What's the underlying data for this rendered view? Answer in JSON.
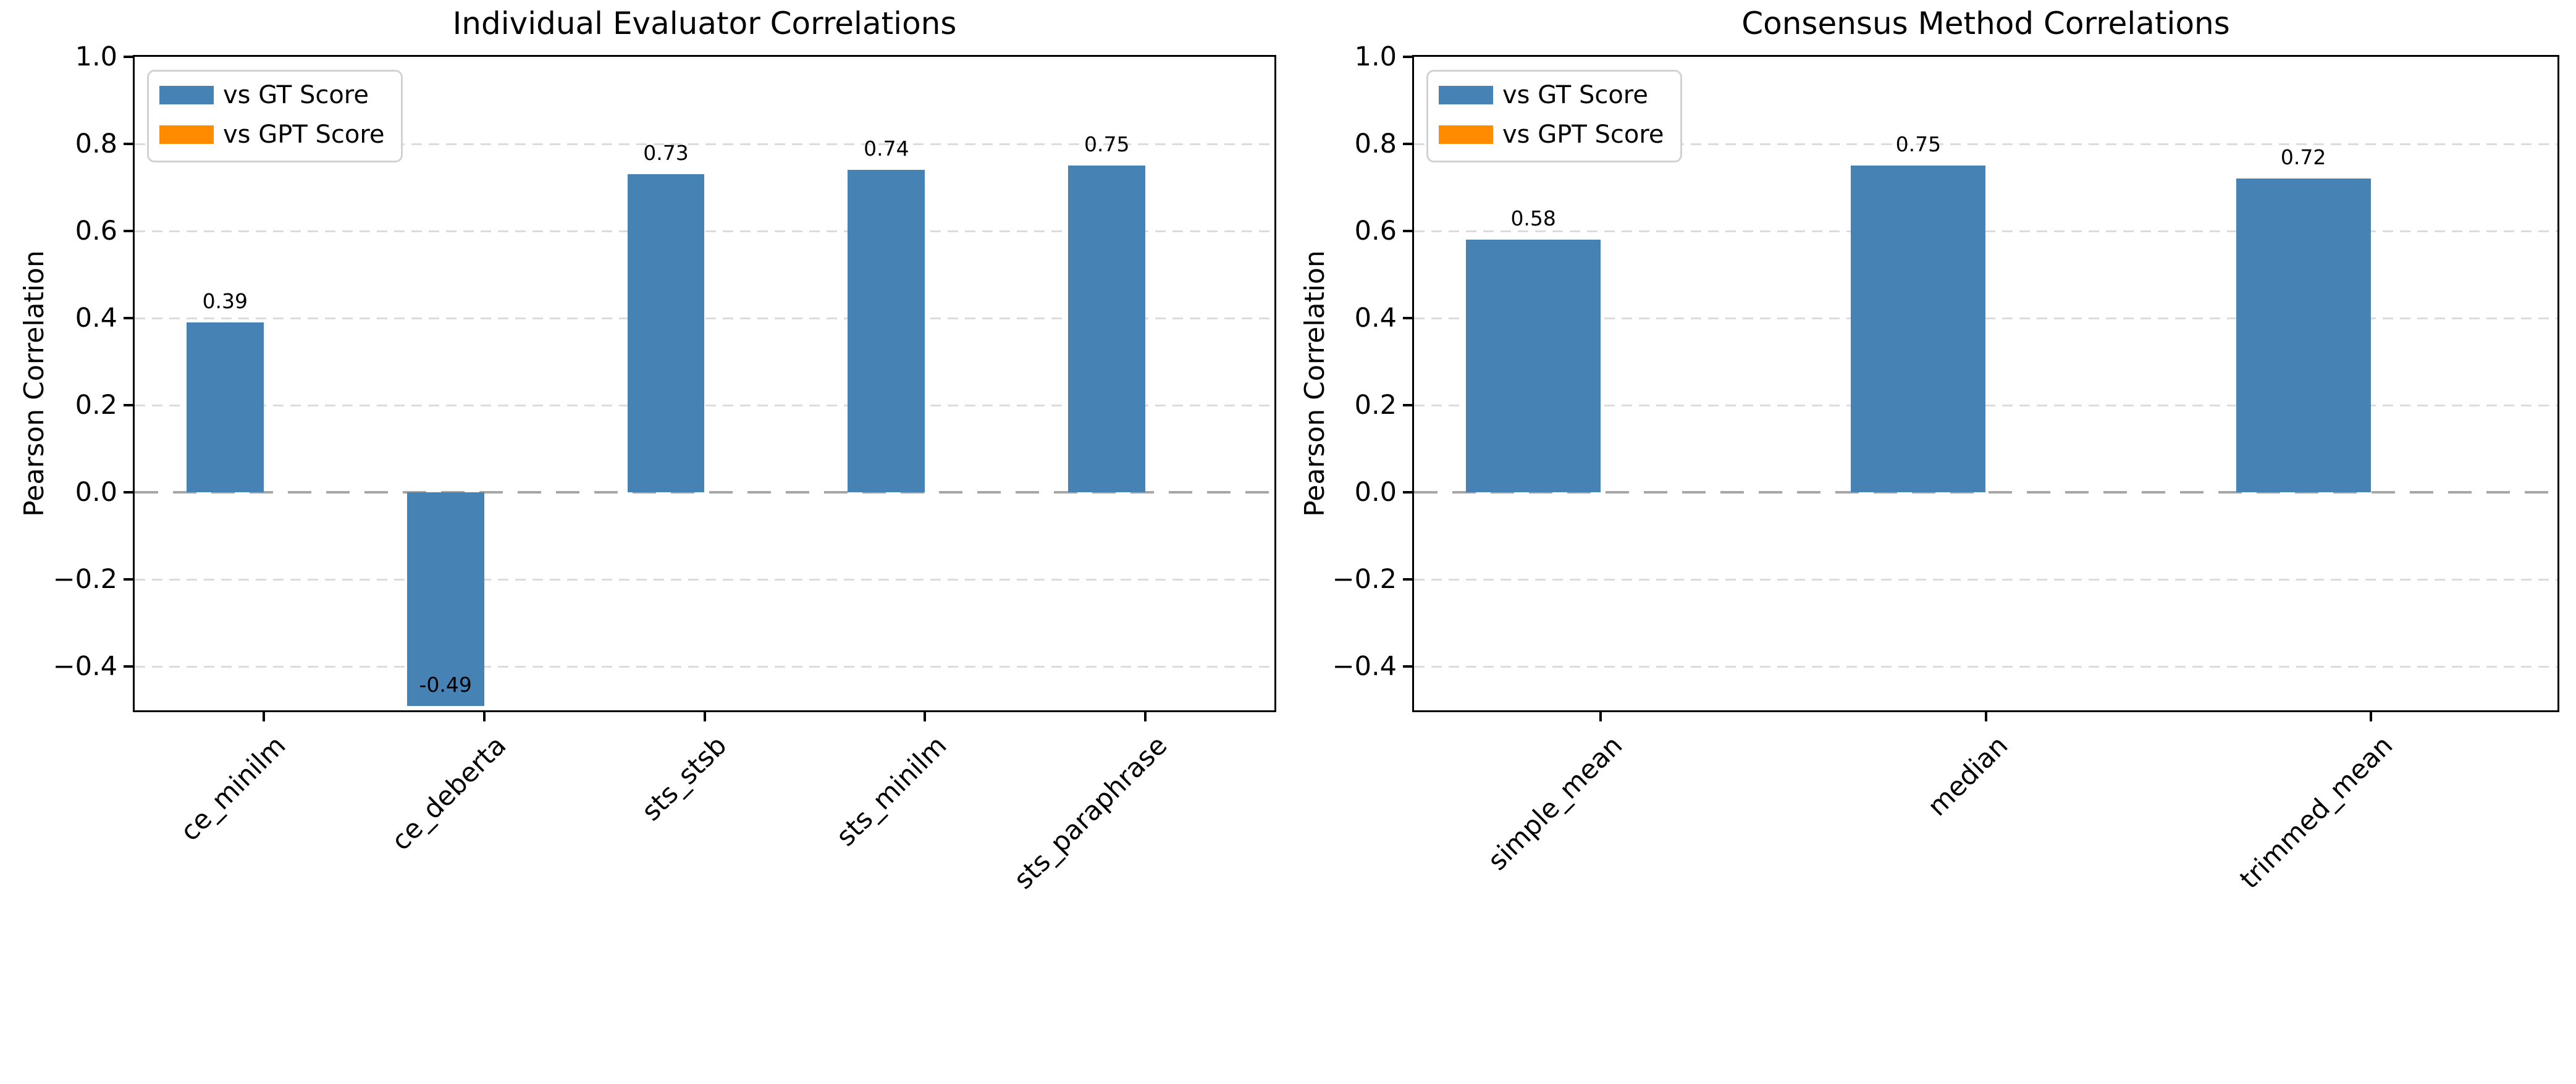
{
  "page": {
    "background": "#ffffff"
  },
  "colors": {
    "bar_blue": "#4682b4",
    "bar_orange": "#ff8c00",
    "gridline": "#dcdcdc",
    "zero_line": "#a6a6a6",
    "axis": "#000000",
    "text": "#000000",
    "legend_border": "#d2d2d2",
    "legend_background": "#ffffff"
  },
  "chart_data": [
    {
      "type": "bar",
      "title": "Individual Evaluator Correlations",
      "xlabel": "",
      "ylabel": "Pearson Correlation",
      "categories": [
        "ce_minilm",
        "ce_deberta",
        "sts_stsb",
        "sts_minilm",
        "sts_paraphrase"
      ],
      "series": [
        {
          "name": "vs GT Score",
          "color": "#4682b4",
          "values": [
            0.39,
            -0.49,
            0.73,
            0.74,
            0.75
          ],
          "value_labels": [
            "0.39",
            "-0.49",
            "0.73",
            "0.74",
            "0.75"
          ]
        },
        {
          "name": "vs GPT Score",
          "color": "#ff8c00",
          "values": [
            0,
            0,
            0,
            0,
            0
          ],
          "value_labels": [
            "",
            "",
            "",
            "",
            ""
          ]
        }
      ],
      "ylim": [
        -0.5,
        1.0
      ],
      "yticks": [
        {
          "value": 1.0,
          "label": "1.0"
        },
        {
          "value": 0.8,
          "label": "0.8"
        },
        {
          "value": 0.6,
          "label": "0.6"
        },
        {
          "value": 0.4,
          "label": "0.4"
        },
        {
          "value": 0.2,
          "label": "0.2"
        },
        {
          "value": 0.0,
          "label": "0.0"
        },
        {
          "value": -0.2,
          "label": "−0.2"
        },
        {
          "value": -0.4,
          "label": "−0.4"
        }
      ],
      "grid": "horizontal dashed",
      "zero_line": "gray dashed",
      "x_tick_rotation": 45,
      "legend": {
        "position": "upper left",
        "entries": [
          "vs GT Score",
          "vs GPT Score"
        ]
      }
    },
    {
      "type": "bar",
      "title": "Consensus Method Correlations",
      "xlabel": "",
      "ylabel": "Pearson Correlation",
      "categories": [
        "simple_mean",
        "median",
        "trimmed_mean"
      ],
      "series": [
        {
          "name": "vs GT Score",
          "color": "#4682b4",
          "values": [
            0.58,
            0.75,
            0.72
          ],
          "value_labels": [
            "0.58",
            "0.75",
            "0.72"
          ]
        },
        {
          "name": "vs GPT Score",
          "color": "#ff8c00",
          "values": [
            0,
            0,
            0
          ],
          "value_labels": [
            "",
            "",
            ""
          ]
        }
      ],
      "ylim": [
        -0.5,
        1.0
      ],
      "yticks": [
        {
          "value": 1.0,
          "label": "1.0"
        },
        {
          "value": 0.8,
          "label": "0.8"
        },
        {
          "value": 0.6,
          "label": "0.6"
        },
        {
          "value": 0.4,
          "label": "0.4"
        },
        {
          "value": 0.2,
          "label": "0.2"
        },
        {
          "value": 0.0,
          "label": "0.0"
        },
        {
          "value": -0.2,
          "label": "−0.2"
        },
        {
          "value": -0.4,
          "label": "−0.4"
        }
      ],
      "grid": "horizontal dashed",
      "zero_line": "gray dashed",
      "x_tick_rotation": 45,
      "legend": {
        "position": "upper left",
        "entries": [
          "vs GT Score",
          "vs GPT Score"
        ]
      }
    }
  ]
}
